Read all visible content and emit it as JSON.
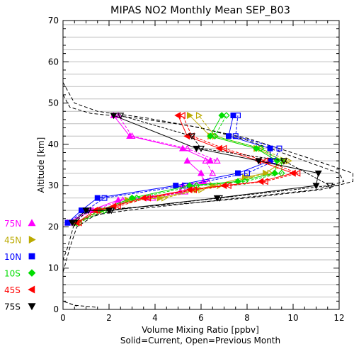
{
  "chart_data": {
    "type": "line",
    "title": "MIPAS NO2 Monthly Mean SEP_B03",
    "xlabel": "Volume Mixing Ratio [ppbv]",
    "subtitle": "Solid=Current, Open=Previous Month",
    "ylabel": "Altitude [km]",
    "xlim": [
      0,
      12
    ],
    "ylim": [
      0,
      70
    ],
    "x_ticks": [
      "0",
      "2",
      "4",
      "6",
      "8",
      "10",
      "12"
    ],
    "y_ticks": [
      "0",
      "10",
      "20",
      "30",
      "40",
      "50",
      "60",
      "70"
    ],
    "grid": "horizontal",
    "legend_position": "left",
    "series": [
      {
        "name": "75N",
        "color": "#ff00ff",
        "marker": "triangle-up",
        "current": [
          [
            0.2,
            21.0
          ],
          [
            1.2,
            24.0
          ],
          [
            2.4,
            26.5
          ],
          [
            3.7,
            27.0
          ],
          [
            5.1,
            28.5
          ],
          [
            5.2,
            30.0
          ],
          [
            6.1,
            31.0
          ],
          [
            6.0,
            33.0
          ],
          [
            5.4,
            36.0
          ],
          [
            6.4,
            36.0
          ],
          [
            5.2,
            39.0
          ],
          [
            2.9,
            42.0
          ],
          [
            2.2,
            47.0
          ]
        ],
        "previous": [
          [
            0.3,
            21.0
          ],
          [
            1.3,
            24.0
          ],
          [
            2.6,
            26.5
          ],
          [
            3.9,
            27.0
          ],
          [
            5.3,
            28.5
          ],
          [
            5.6,
            30.0
          ],
          [
            6.3,
            31.0
          ],
          [
            6.5,
            33.0
          ],
          [
            6.2,
            36.0
          ],
          [
            6.7,
            36.0
          ],
          [
            5.4,
            39.0
          ],
          [
            3.0,
            42.0
          ],
          [
            2.4,
            47.0
          ]
        ]
      },
      {
        "name": "45N",
        "color": "#bbaa00",
        "marker": "triangle-right",
        "current": [
          [
            0.6,
            21.0
          ],
          [
            1.6,
            24.0
          ],
          [
            2.8,
            26.5
          ],
          [
            4.2,
            27.0
          ],
          [
            5.8,
            29.0
          ],
          [
            6.5,
            30.0
          ],
          [
            7.9,
            32.0
          ],
          [
            8.8,
            33.0
          ],
          [
            9.6,
            36.0
          ],
          [
            8.4,
            39.0
          ],
          [
            6.4,
            42.0
          ],
          [
            5.5,
            47.0
          ]
        ],
        "previous": [
          [
            0.6,
            21.0
          ],
          [
            1.7,
            24.0
          ],
          [
            3.0,
            26.5
          ],
          [
            4.4,
            27.0
          ],
          [
            6.0,
            29.0
          ],
          [
            6.8,
            30.0
          ],
          [
            8.1,
            32.0
          ],
          [
            9.0,
            33.0
          ],
          [
            9.8,
            36.0
          ],
          [
            8.6,
            39.0
          ],
          [
            6.6,
            42.0
          ],
          [
            5.9,
            47.0
          ]
        ]
      },
      {
        "name": "10N",
        "color": "#0000ff",
        "marker": "square",
        "current": [
          [
            0.2,
            21.0
          ],
          [
            0.8,
            24.0
          ],
          [
            1.5,
            27.0
          ],
          [
            4.9,
            30.0
          ],
          [
            7.6,
            33.0
          ],
          [
            9.0,
            36.0
          ],
          [
            9.0,
            39.0
          ],
          [
            7.2,
            42.0
          ],
          [
            7.4,
            47.0
          ]
        ],
        "previous": [
          [
            0.2,
            21.0
          ],
          [
            1.0,
            24.0
          ],
          [
            1.8,
            27.0
          ],
          [
            5.3,
            30.0
          ],
          [
            8.0,
            33.0
          ],
          [
            9.2,
            36.0
          ],
          [
            9.4,
            39.0
          ],
          [
            7.5,
            42.0
          ],
          [
            7.6,
            47.0
          ]
        ]
      },
      {
        "name": "10S",
        "color": "#00dd00",
        "marker": "diamond",
        "current": [
          [
            0.6,
            21.0
          ],
          [
            1.6,
            24.0
          ],
          [
            3.0,
            27.0
          ],
          [
            5.5,
            30.0
          ],
          [
            7.6,
            31.0
          ],
          [
            9.2,
            33.0
          ],
          [
            9.3,
            36.0
          ],
          [
            8.4,
            39.0
          ],
          [
            6.4,
            42.0
          ],
          [
            6.9,
            47.0
          ]
        ],
        "previous": [
          [
            0.7,
            21.0
          ],
          [
            1.8,
            24.0
          ],
          [
            3.2,
            27.0
          ],
          [
            5.8,
            30.0
          ],
          [
            7.9,
            31.0
          ],
          [
            9.5,
            33.0
          ],
          [
            9.5,
            36.0
          ],
          [
            8.6,
            39.0
          ],
          [
            6.6,
            42.0
          ],
          [
            7.1,
            47.0
          ]
        ]
      },
      {
        "name": "45S",
        "color": "#ff0000",
        "marker": "triangle-left",
        "current": [
          [
            0.6,
            21.0
          ],
          [
            1.4,
            24.0
          ],
          [
            2.2,
            25.0
          ],
          [
            3.5,
            27.0
          ],
          [
            5.5,
            29.0
          ],
          [
            7.0,
            30.0
          ],
          [
            8.6,
            31.0
          ],
          [
            10.0,
            33.0
          ],
          [
            8.5,
            36.0
          ],
          [
            6.8,
            39.0
          ],
          [
            5.4,
            42.0
          ],
          [
            5.0,
            47.0
          ]
        ],
        "previous": [
          [
            0.7,
            21.0
          ],
          [
            1.5,
            24.0
          ],
          [
            2.4,
            25.0
          ],
          [
            3.7,
            27.0
          ],
          [
            5.7,
            29.0
          ],
          [
            7.2,
            30.0
          ],
          [
            8.8,
            31.0
          ],
          [
            10.2,
            33.0
          ],
          [
            8.8,
            36.0
          ],
          [
            7.0,
            39.0
          ],
          [
            5.6,
            42.0
          ],
          [
            5.2,
            47.0
          ]
        ]
      },
      {
        "name": "75S",
        "color": "#000000",
        "marker": "triangle-down",
        "current": [
          [
            0.4,
            21.0
          ],
          [
            1.0,
            24.0
          ],
          [
            2.0,
            24.0
          ],
          [
            6.7,
            27.0
          ],
          [
            11.0,
            30.0
          ],
          [
            11.1,
            33.0
          ],
          [
            8.5,
            36.0
          ],
          [
            5.8,
            39.0
          ],
          [
            2.2,
            47.0
          ]
        ],
        "previous": [
          [
            0.5,
            21.0
          ],
          [
            1.1,
            24.0
          ],
          [
            2.1,
            24.0
          ],
          [
            6.8,
            27.0
          ],
          [
            11.6,
            30.0
          ],
          [
            9.6,
            36.0
          ],
          [
            6.0,
            39.0
          ],
          [
            5.6,
            42.0
          ],
          [
            2.5,
            47.0
          ]
        ]
      }
    ],
    "climatology_dashed": [
      [
        [
          0.0,
          55.0
        ],
        [
          0.5,
          50.0
        ],
        [
          1.5,
          48.0
        ],
        [
          3.5,
          46.5
        ],
        [
          6.0,
          44.0
        ],
        [
          8.0,
          41.0
        ],
        [
          10.0,
          37.0
        ],
        [
          12.0,
          33.0
        ],
        [
          12.2,
          31.0
        ],
        [
          11.0,
          29.0
        ],
        [
          8.5,
          27.5
        ],
        [
          6.0,
          26.0
        ],
        [
          3.5,
          24.5
        ],
        [
          1.5,
          23.0
        ],
        [
          0.5,
          21.0
        ],
        [
          0.2,
          15.0
        ],
        [
          0.0,
          12.0
        ],
        [
          0.0,
          2.0
        ],
        [
          0.5,
          1.0
        ],
        [
          1.5,
          0.5
        ]
      ],
      [
        [
          0.0,
          52.0
        ],
        [
          0.3,
          49.0
        ],
        [
          1.2,
          47.5
        ],
        [
          3.0,
          46.5
        ],
        [
          5.5,
          44.5
        ],
        [
          8.0,
          41.5
        ],
        [
          10.5,
          37.0
        ],
        [
          12.6,
          33.0
        ],
        [
          12.6,
          31.0
        ],
        [
          11.2,
          29.0
        ],
        [
          8.0,
          27.0
        ],
        [
          5.0,
          25.5
        ],
        [
          2.5,
          24.5
        ],
        [
          1.3,
          22.5
        ],
        [
          0.6,
          20.0
        ],
        [
          0.3,
          15.0
        ],
        [
          0.0,
          9.0
        ],
        [
          0.0,
          2.0
        ],
        [
          0.6,
          0.8
        ]
      ]
    ]
  }
}
